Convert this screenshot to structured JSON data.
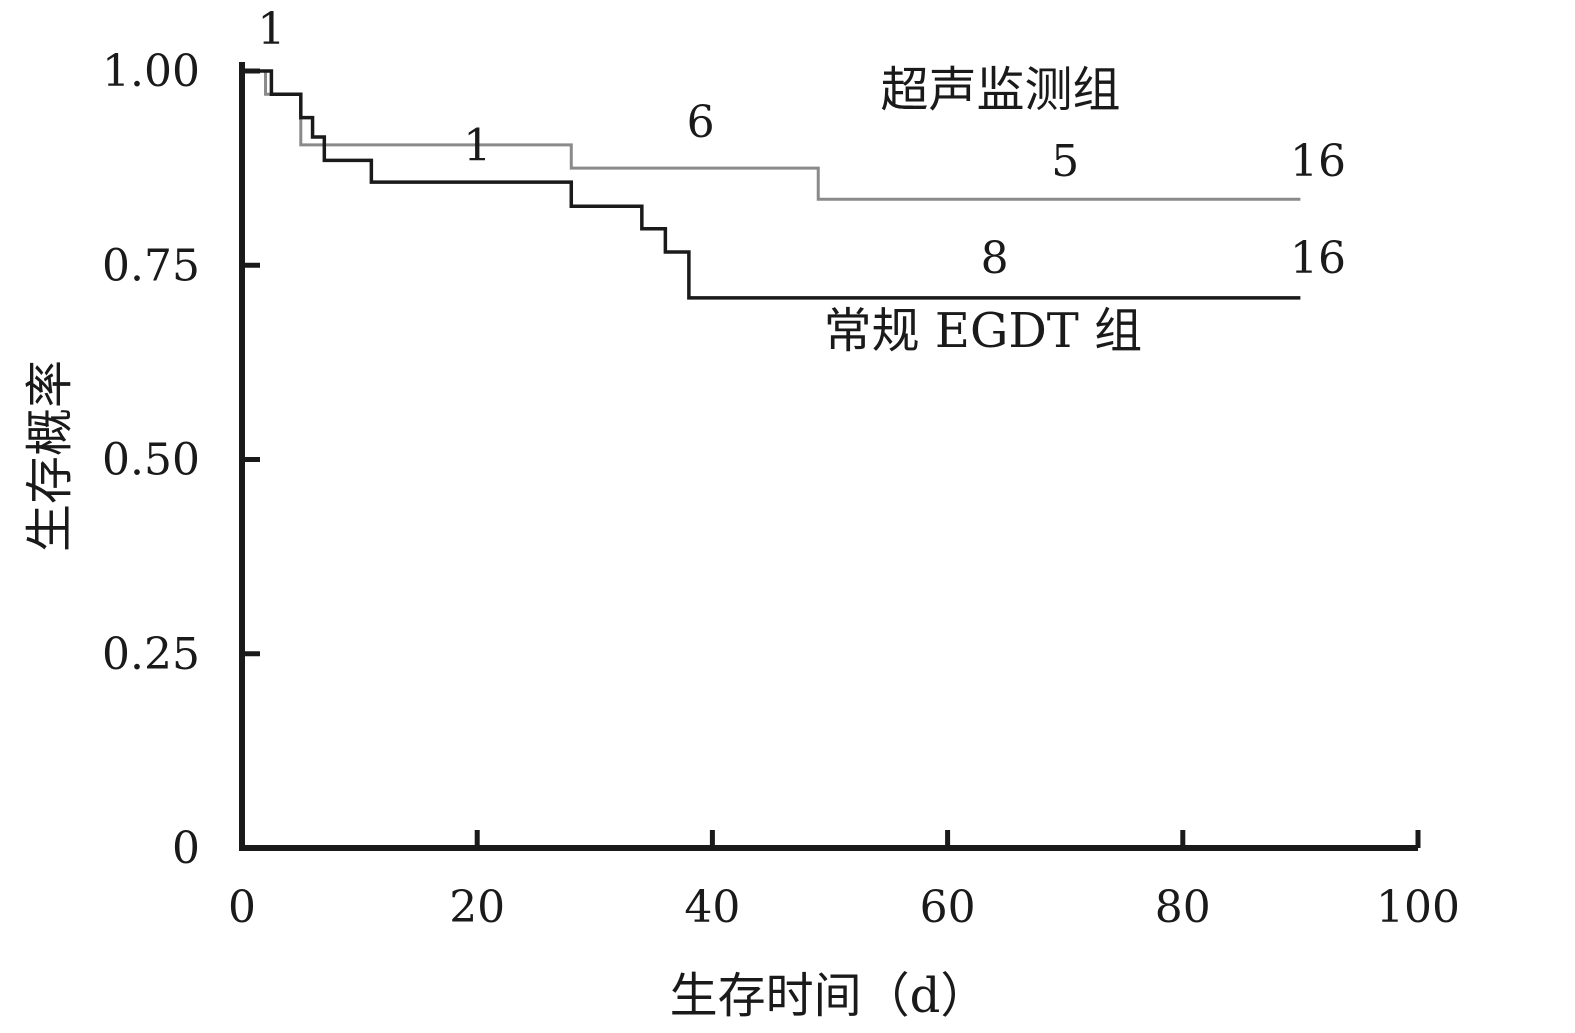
{
  "chart_data": {
    "type": "line",
    "subtype": "kaplan-meier step curve",
    "xlabel": "生存时间（d）",
    "ylabel": "生存概率",
    "xlim": [
      0,
      100
    ],
    "ylim": [
      0,
      1
    ],
    "x_ticks": [
      "0",
      "20",
      "40",
      "60",
      "80",
      "100"
    ],
    "y_ticks": [
      "0",
      "0.25",
      "0.50",
      "0.75",
      "1.00"
    ],
    "grid": false,
    "series": [
      {
        "name": "超声监测组",
        "color": "#8a8a8a",
        "steps": [
          [
            0,
            1.0
          ],
          [
            2,
            0.97
          ],
          [
            5,
            0.905
          ],
          [
            28,
            0.875
          ],
          [
            49,
            0.835
          ],
          [
            90,
            0.835
          ]
        ]
      },
      {
        "name": "常规 EGDT 组",
        "color": "#1a1a1a",
        "steps": [
          [
            0,
            1.0
          ],
          [
            2.5,
            0.97
          ],
          [
            5,
            0.94
          ],
          [
            6,
            0.915
          ],
          [
            7,
            0.885
          ],
          [
            11,
            0.857
          ],
          [
            28,
            0.826
          ],
          [
            34,
            0.797
          ],
          [
            36,
            0.767
          ],
          [
            38,
            0.708
          ],
          [
            90,
            0.708
          ]
        ]
      }
    ],
    "annotations": [
      {
        "text": "1",
        "x": 2.5,
        "y": 1.035
      },
      {
        "text": "1",
        "x": 20,
        "y": 0.885
      },
      {
        "text": "6",
        "x": 39,
        "y": 0.915
      },
      {
        "text": "5",
        "x": 70,
        "y": 0.865
      },
      {
        "text": "16",
        "x": 91.5,
        "y": 0.865
      },
      {
        "text": "8",
        "x": 64,
        "y": 0.74
      },
      {
        "text": "16",
        "x": 91.5,
        "y": 0.74
      }
    ],
    "series_labels": [
      {
        "text": "超声监测组",
        "x": 64.5,
        "y": 0.955
      },
      {
        "text": "常规 EGDT 组",
        "x": 63,
        "y": 0.645
      }
    ]
  }
}
